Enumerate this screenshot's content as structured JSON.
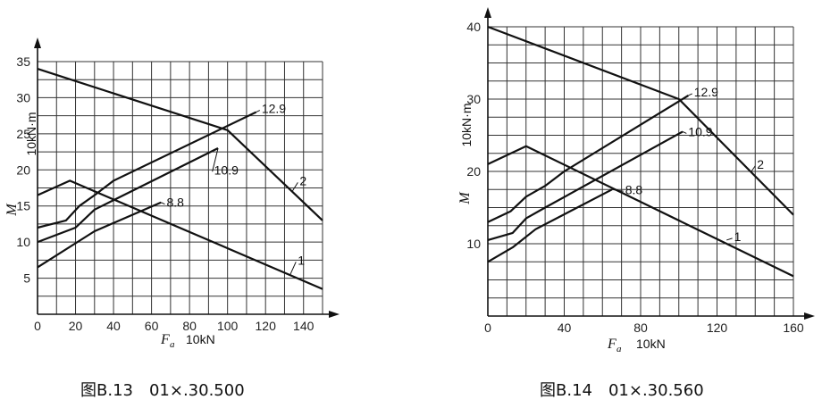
{
  "chart_data": [
    {
      "type": "line",
      "caption": "图B.13　01×.30.500",
      "xlabel": "F",
      "xlabel_sub": "a",
      "xunit": "10kN",
      "ylabel": "M",
      "yunit": "10kN·m",
      "xlim": [
        0,
        150
      ],
      "ylim": [
        0,
        35
      ],
      "xticks": [
        0,
        20,
        40,
        60,
        80,
        100,
        120,
        140
      ],
      "yticks": [
        5,
        10,
        15,
        20,
        25,
        30,
        35
      ],
      "grid": true,
      "series": [
        {
          "name": "1",
          "x": [
            0,
            17,
            150
          ],
          "y": [
            16.5,
            18.5,
            3.5
          ],
          "label_at": [
            133,
            5.5
          ],
          "label_pos": [
            136,
            7.5
          ]
        },
        {
          "name": "2",
          "x": [
            0,
            100,
            150
          ],
          "y": [
            34,
            25.5,
            13
          ],
          "label_at": [
            134,
            17
          ],
          "label_pos": [
            137,
            18.5
          ]
        },
        {
          "name": "12.9",
          "x": [
            0,
            15,
            22,
            30,
            40,
            115
          ],
          "y": [
            12,
            13,
            15,
            16.5,
            18.5,
            28
          ],
          "label_at": [
            115,
            28
          ],
          "label_pos": [
            117,
            28.5
          ]
        },
        {
          "name": "10.9",
          "x": [
            0,
            20,
            30,
            95
          ],
          "y": [
            10,
            12,
            14.5,
            23
          ],
          "label_at": [
            95,
            23
          ],
          "label_pos": [
            92,
            20
          ]
        },
        {
          "name": "8.8",
          "x": [
            0,
            30,
            65
          ],
          "y": [
            6.5,
            11.5,
            15.5
          ],
          "label_at": [
            65,
            15.5
          ],
          "label_pos": [
            67,
            15.5
          ]
        }
      ]
    },
    {
      "type": "line",
      "caption": "图B.14　01×.30.560",
      "xlabel": "F",
      "xlabel_sub": "a",
      "xunit": "10kN",
      "ylabel": "M",
      "yunit": "10kN·m",
      "xlim": [
        0,
        160
      ],
      "ylim": [
        0,
        40
      ],
      "xticks": [
        0,
        40,
        80,
        120,
        160
      ],
      "yticks": [
        10,
        20,
        30,
        40
      ],
      "grid": true,
      "series": [
        {
          "name": "1",
          "x": [
            0,
            20,
            160
          ],
          "y": [
            21,
            23.5,
            5.5
          ],
          "label_at": [
            125,
            10.5
          ],
          "label_pos": [
            128,
            11
          ]
        },
        {
          "name": "2",
          "x": [
            0,
            100,
            160
          ],
          "y": [
            40,
            30,
            14
          ],
          "label_at": [
            138,
            20
          ],
          "label_pos": [
            140,
            21
          ]
        },
        {
          "name": "12.9",
          "x": [
            0,
            12,
            20,
            30,
            40,
            105
          ],
          "y": [
            13,
            14.5,
            16.5,
            18,
            20,
            30.5
          ],
          "label_at": [
            105,
            30.5
          ],
          "label_pos": [
            107,
            31
          ]
        },
        {
          "name": "10.9",
          "x": [
            0,
            13,
            20,
            30,
            102
          ],
          "y": [
            10.5,
            11.5,
            13.5,
            15,
            25.5
          ],
          "label_at": [
            102,
            25.5
          ],
          "label_pos": [
            104,
            25.5
          ]
        },
        {
          "name": "8.8",
          "x": [
            0,
            13,
            25,
            65
          ],
          "y": [
            7.5,
            9.5,
            12,
            17.5
          ],
          "label_at": [
            65,
            17.5
          ],
          "label_pos": [
            71,
            17.5
          ]
        }
      ]
    }
  ]
}
